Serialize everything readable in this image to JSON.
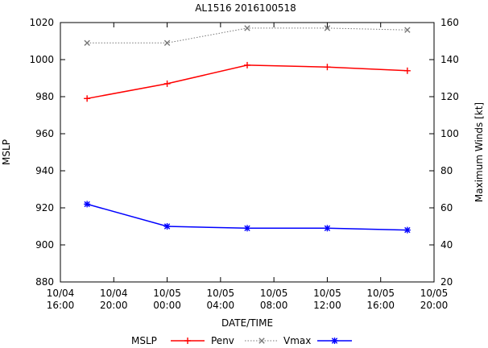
{
  "chart_data": {
    "type": "line",
    "title": "AL1516 2016100518",
    "xlabel": "DATE/TIME",
    "ylabel_left": "MSLP",
    "ylabel_right": "Maximum Winds [kt]",
    "x_ticks": [
      "10/04\n16:00",
      "10/04\n20:00",
      "10/05\n00:00",
      "10/05\n04:00",
      "10/05\n08:00",
      "10/05\n12:00",
      "10/05\n16:00",
      "10/05\n20:00"
    ],
    "x_tick_hours": [
      16,
      20,
      24,
      28,
      32,
      36,
      40,
      44
    ],
    "xlim_hours": [
      16,
      44
    ],
    "ylim_left": [
      880,
      1020
    ],
    "yticks_left": [
      880,
      900,
      920,
      940,
      960,
      980,
      1000,
      1020
    ],
    "ylim_right": [
      20,
      160
    ],
    "yticks_right": [
      20,
      40,
      60,
      80,
      100,
      120,
      140,
      160
    ],
    "grid": false,
    "legend_placement": "bottom",
    "legend_title": "MSLP",
    "series": [
      {
        "name": "Penv",
        "axis": "left",
        "color": "#ff0000",
        "marker": "plus",
        "dash": "solid",
        "x_hours": [
          18,
          24,
          30,
          36,
          42
        ],
        "values": [
          979,
          987,
          997,
          996,
          994
        ]
      },
      {
        "name": "Vmax",
        "axis": "right",
        "color": "#777777",
        "marker": "cross",
        "dash": "dotted",
        "x_hours": [
          18,
          24,
          30,
          36,
          42
        ],
        "values": [
          149,
          149,
          157,
          157,
          156
        ]
      },
      {
        "name": "",
        "axis": "left",
        "color": "#0000ff",
        "marker": "star",
        "dash": "solid",
        "x_hours": [
          18,
          24,
          30,
          36,
          42
        ],
        "values": [
          922,
          910,
          909,
          909,
          908
        ]
      }
    ]
  }
}
